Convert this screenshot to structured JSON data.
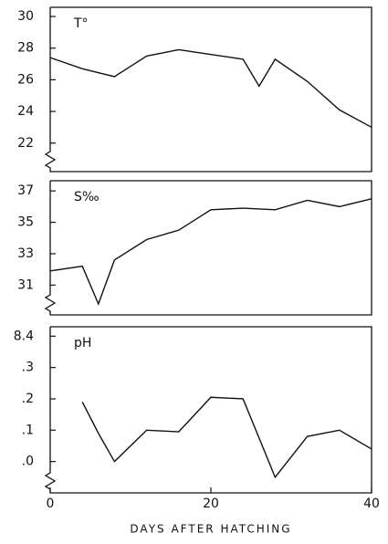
{
  "chart_data": [
    {
      "type": "line",
      "label": "T°",
      "x": [
        0,
        4,
        8,
        12,
        16,
        20,
        24,
        26,
        28,
        32,
        36,
        40
      ],
      "values": [
        27.4,
        26.7,
        26.2,
        27.5,
        27.9,
        27.6,
        27.3,
        25.6,
        27.3,
        25.9,
        24.1,
        23.0
      ],
      "xlim": [
        0,
        40
      ],
      "ylim": [
        20.2,
        30.58
      ],
      "yticks": [
        30,
        28,
        26,
        24,
        22
      ],
      "color": "#111111"
    },
    {
      "type": "line",
      "label": "S‰",
      "x": [
        0,
        4,
        6,
        8,
        12,
        16,
        20,
        24,
        28,
        32,
        36,
        40
      ],
      "values": [
        31.9,
        32.2,
        29.8,
        32.6,
        33.9,
        34.5,
        35.8,
        35.9,
        35.8,
        36.4,
        36.0,
        36.5
      ],
      "xlim": [
        0,
        40
      ],
      "ylim": [
        29.1,
        37.65
      ],
      "yticks": [
        37,
        35,
        33,
        31
      ],
      "color": "#111111"
    },
    {
      "type": "line",
      "label": "pH",
      "x": [
        4,
        6,
        8,
        12,
        16,
        20,
        24,
        28,
        32,
        36,
        40
      ],
      "values": [
        8.19,
        8.09,
        8.0,
        8.1,
        8.095,
        8.205,
        8.2,
        7.95,
        8.08,
        8.1,
        8.04
      ],
      "xlim": [
        0,
        40
      ],
      "ylim": [
        7.9,
        8.43
      ],
      "yticks": [
        8.4,
        {
          "value": 8.3,
          "label": ".3"
        },
        {
          "value": 8.2,
          "label": ".2"
        },
        {
          "value": 8.1,
          "label": ".1"
        },
        {
          "value": 8.0,
          "label": ".0"
        }
      ],
      "xticks": [
        0,
        20,
        40
      ],
      "x_label": "DAYS AFTER HATCHING",
      "color": "#111111"
    }
  ]
}
